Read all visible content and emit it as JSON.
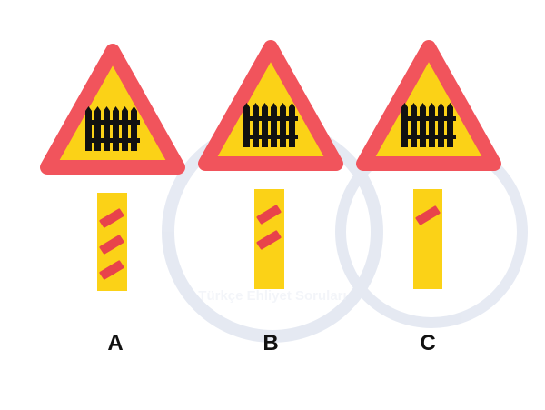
{
  "options": [
    {
      "label": "A"
    },
    {
      "label": "B"
    },
    {
      "label": "C"
    }
  ],
  "watermark": "Türkçe Ehliyet Soruları"
}
